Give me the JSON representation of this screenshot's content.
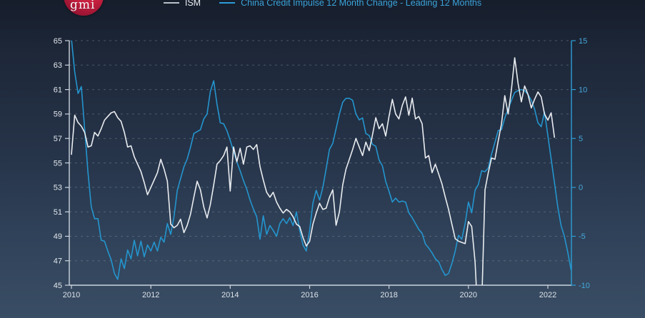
{
  "header": {
    "logo_text": "gmi"
  },
  "legend": [
    {
      "label": "ISM",
      "color": "#b9c0c9",
      "text_color": "#e8ecf1"
    },
    {
      "label": "China Credit Impulse 12 Month Change - Leading 12 Months",
      "color": "#2b9cd8",
      "text_color": "#3ba3d9"
    }
  ],
  "chart_data": {
    "type": "line",
    "title": "",
    "frequency": "monthly",
    "start": "2010-01",
    "x_axis": {
      "tick_labels": [
        "2010",
        "2012",
        "2014",
        "2016",
        "2018",
        "2020",
        "2022"
      ],
      "tick_years": [
        2010,
        2012,
        2014,
        2016,
        2018,
        2020,
        2022
      ],
      "range_years": [
        2010,
        2022.65
      ]
    },
    "left_axis": {
      "title": "ISM",
      "ticks": [
        45,
        47,
        49,
        51,
        53,
        55,
        57,
        59,
        61,
        63,
        65
      ],
      "range": [
        45,
        65
      ]
    },
    "right_axis": {
      "title": "China Credit Impulse",
      "ticks": [
        15,
        10,
        5,
        0,
        -5,
        -10
      ],
      "range": [
        -10,
        15
      ]
    },
    "grid": {
      "values": [
        47,
        49,
        51,
        53,
        55,
        57,
        59,
        61,
        63,
        65
      ],
      "style": "dashed"
    },
    "series": [
      {
        "name": "ISM",
        "axis": "left",
        "color": "#e9ecf0",
        "values": [
          55.7,
          58.9,
          58.3,
          58.0,
          57.5,
          56.3,
          56.4,
          57.5,
          57.2,
          57.8,
          58.5,
          58.8,
          59.1,
          59.2,
          58.7,
          58.4,
          57.5,
          56.3,
          56.4,
          55.5,
          54.9,
          54.3,
          53.4,
          52.4,
          53.0,
          53.6,
          54.2,
          55.3,
          54.5,
          53.5,
          50.0,
          49.7,
          49.9,
          50.4,
          49.3,
          49.9,
          50.8,
          52.2,
          53.5,
          52.8,
          51.4,
          50.5,
          51.6,
          53.2,
          54.9,
          55.2,
          55.6,
          56.3,
          52.7,
          56.3,
          55.1,
          56.2,
          54.9,
          56.3,
          56.4,
          56.1,
          56.5,
          54.7,
          53.6,
          52.6,
          52.2,
          52.6,
          51.8,
          51.3,
          50.9,
          51.2,
          51.0,
          50.6,
          50.0,
          49.8,
          48.9,
          48.2,
          48.6,
          50.0,
          50.9,
          51.7,
          51.2,
          51.3,
          52.2,
          52.8,
          49.9,
          51.0,
          53.2,
          54.5,
          55.3,
          56.1,
          57.0,
          56.3,
          55.6,
          56.7,
          56.0,
          57.3,
          58.7,
          57.8,
          58.2,
          57.2,
          58.8,
          60.2,
          59.0,
          58.6,
          59.7,
          60.4,
          58.9,
          60.3,
          58.6,
          58.8,
          58.2,
          55.4,
          55.6,
          54.2,
          54.9,
          54.1,
          53.3,
          52.2,
          51.2,
          50.0,
          48.8,
          48.6,
          48.5,
          48.4,
          50.2,
          49.8,
          46.9,
          41.6,
          43.2,
          52.8,
          54.2,
          55.4,
          55.3,
          56.8,
          58.2,
          60.5,
          59.0,
          61.0,
          63.6,
          61.5,
          60.0,
          61.3,
          60.6,
          59.5,
          60.2,
          60.8,
          60.4,
          59.0,
          58.5,
          59.1,
          57.1
        ]
      },
      {
        "name": "China Credit Impulse 12 Month Change - Leading 12 Months",
        "axis": "right",
        "color": "#2495ce",
        "values": [
          15.2,
          11.8,
          9.6,
          10.3,
          6.0,
          1.5,
          -2.0,
          -3.2,
          -3.2,
          -5.4,
          -5.5,
          -6.5,
          -7.4,
          -8.8,
          -9.4,
          -7.3,
          -8.3,
          -6.4,
          -7.3,
          -5.4,
          -7.0,
          -5.5,
          -7.1,
          -5.9,
          -6.5,
          -5.6,
          -6.5,
          -5.1,
          -5.6,
          -3.7,
          -4.8,
          -3.0,
          -0.3,
          0.9,
          2.1,
          2.9,
          4.1,
          5.5,
          5.7,
          5.9,
          7.0,
          7.5,
          9.8,
          10.9,
          8.5,
          6.6,
          6.5,
          5.8,
          4.8,
          3.7,
          2.6,
          1.7,
          0.7,
          -0.2,
          -1.3,
          -2.2,
          -3.0,
          -5.3,
          -2.9,
          -4.8,
          -3.9,
          -4.4,
          -5.0,
          -3.7,
          -3.2,
          -3.7,
          -3.1,
          -3.9,
          -2.5,
          -4.4,
          -5.9,
          -6.5,
          -4.4,
          -1.6,
          -0.3,
          -1.3,
          0.0,
          1.9,
          3.9,
          4.5,
          6.0,
          7.5,
          8.7,
          9.1,
          9.1,
          8.9,
          7.5,
          6.9,
          7.1,
          5.5,
          5.3,
          4.4,
          4.2,
          2.8,
          2.2,
          0.6,
          -0.4,
          -1.5,
          -1.1,
          -1.5,
          -1.4,
          -1.5,
          -2.6,
          -3.1,
          -3.7,
          -4.3,
          -4.7,
          -5.8,
          -6.2,
          -6.7,
          -7.3,
          -7.6,
          -8.4,
          -9.0,
          -8.8,
          -7.8,
          -6.5,
          -4.9,
          -5.3,
          -3.7,
          -1.5,
          -2.6,
          -0.3,
          0.3,
          1.7,
          1.6,
          2.0,
          3.4,
          4.6,
          5.8,
          5.9,
          7.1,
          8.0,
          8.9,
          9.7,
          9.9,
          10.0,
          9.9,
          9.5,
          8.9,
          8.0,
          6.6,
          6.2,
          7.7,
          5.3,
          2.9,
          0.5,
          -2.0,
          -3.9,
          -5.0,
          -6.6,
          -8.4
        ]
      }
    ]
  },
  "colors": {
    "background_top": "#161d2b",
    "background_bottom": "#394d64",
    "left_axis": "#ccd4de",
    "left_labels": "#e3e8ee",
    "x_labels": "#dde2ea",
    "right_axis": "#2e9ed6",
    "right_labels": "#45a7da",
    "gridline": "#a4aebd",
    "logo_red": "#c41f3e"
  }
}
